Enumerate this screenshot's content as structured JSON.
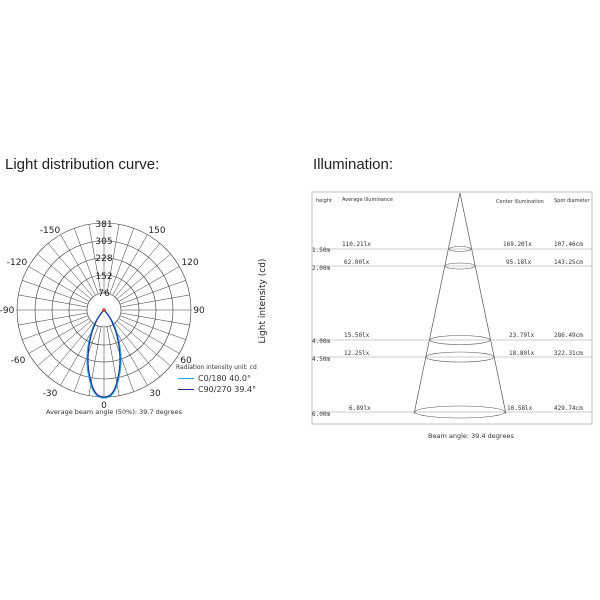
{
  "left": {
    "title": "Light distribution curve:",
    "ring_labels": [
      "381",
      "305",
      "228",
      "152",
      "76",
      "0"
    ],
    "angle_labels": {
      "left": [
        "-150",
        "-120",
        "-90",
        "-60",
        "-30"
      ],
      "right": [
        "150",
        "120",
        "90",
        "60",
        "30"
      ],
      "bottom": "0"
    },
    "unit_label": "Radiation intensity unit: cd",
    "legend": [
      {
        "label": "C0/180  40.0°",
        "color": "#29a8e0"
      },
      {
        "label": "C90/270  39.4°",
        "color": "#1f2d8c"
      }
    ],
    "avg_beam": "Average beam angle (50%): 39.7 degrees",
    "y_axis_label": "Light intensity (cd)"
  },
  "right": {
    "title": "Illumination:",
    "headers": {
      "height": "height",
      "avg": "Average illuminance",
      "center": "Center illumination",
      "spot": "Spot diameter"
    },
    "rows": [
      {
        "height": "1.50m",
        "avg": "110.21lx",
        "center": "169.20lx",
        "spot": "107.46cm"
      },
      {
        "height": "2.00m",
        "avg": "62.00lx",
        "center": "95.18lx",
        "spot": "143.25cm"
      },
      {
        "height": "4.00m",
        "avg": "15.50lx",
        "center": "23.79lx",
        "spot": "286.49cm"
      },
      {
        "height": "4.50m",
        "avg": "12.25lx",
        "center": "18.80lx",
        "spot": "322.31cm"
      },
      {
        "height": "6.00m",
        "avg": "6.89lx",
        "center": "10.58lx",
        "spot": "429.74cm"
      }
    ],
    "beam_angle": "Beam angle: 39.4 degrees"
  }
}
